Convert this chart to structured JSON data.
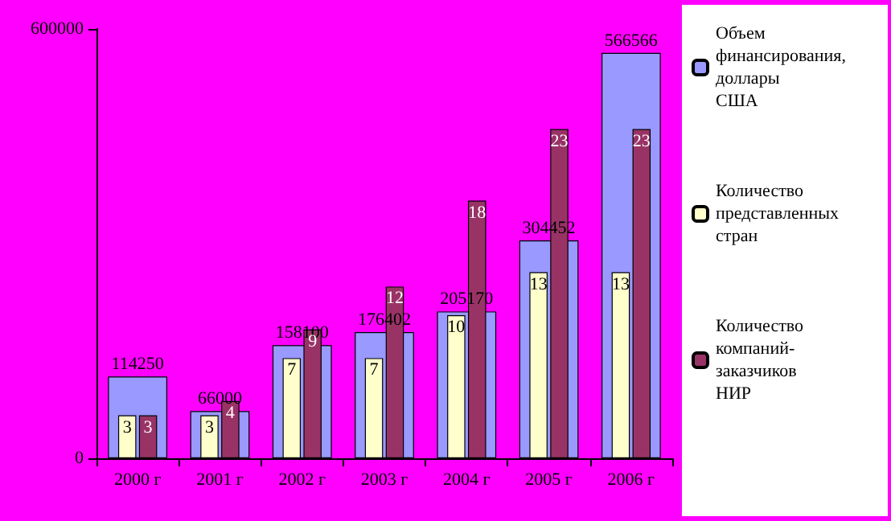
{
  "chart_data": {
    "type": "bar",
    "categories": [
      "2000 г",
      "2001 г",
      "2002 г",
      "2003 г",
      "2004 г",
      "2005 г",
      "2006 г"
    ],
    "series": [
      {
        "name": "Объем финансирования, доллары США",
        "color": "#9999ff",
        "values": [
          114250,
          66000,
          158100,
          176402,
          205170,
          304452,
          566566
        ]
      },
      {
        "name": "Количество представленных стран",
        "color": "#ffffcc",
        "axis": "y2",
        "values": [
          3,
          3,
          7,
          7,
          10,
          13,
          13
        ]
      },
      {
        "name": "Количество компаний-заказчиков НИР",
        "color": "#993366",
        "axis": "y2",
        "values": [
          3,
          4,
          9,
          12,
          18,
          23,
          23
        ]
      }
    ],
    "ylim": [
      0,
      600000
    ],
    "yticks": [
      0,
      600000
    ],
    "data_labels": true,
    "grid": false,
    "legend": "right"
  }
}
